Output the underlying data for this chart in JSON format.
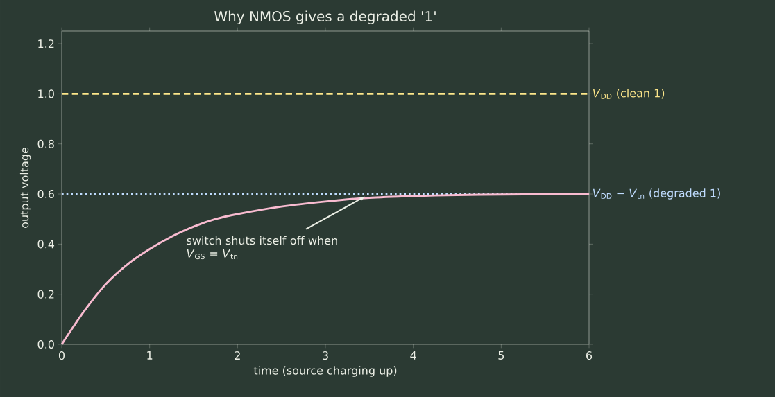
{
  "chart_data": {
    "type": "line",
    "title": "Why NMOS gives a degraded '1'",
    "xlabel": "time (source charging up)",
    "ylabel": "output voltage",
    "x": [
      0,
      0.25,
      0.5,
      0.75,
      1,
      1.25,
      1.5,
      1.75,
      2,
      2.5,
      3,
      3.5,
      4,
      4.5,
      5,
      5.5,
      6
    ],
    "series": [
      {
        "color": "#f8bbd0",
        "values": [
          0,
          0.13,
          0.24,
          0.32,
          0.38,
          0.43,
          0.47,
          0.5,
          0.52,
          0.55,
          0.57,
          0.585,
          0.592,
          0.596,
          0.598,
          0.599,
          0.6
        ]
      }
    ],
    "xlim": [
      0,
      6
    ],
    "ylim": [
      0,
      1.25
    ],
    "xticks": [
      0,
      1,
      2,
      3,
      4,
      5,
      6
    ],
    "yticks": [
      {
        "value": 0,
        "label": "0.0"
      },
      {
        "value": 0.2,
        "label": "0.2"
      },
      {
        "value": 0.4,
        "label": "0.4"
      },
      {
        "value": 0.6,
        "label": "0.6"
      },
      {
        "value": 0.8,
        "label": "0.8"
      },
      {
        "value": 1.0,
        "label": "1.0"
      },
      {
        "value": 1.2,
        "label": "1.2"
      }
    ],
    "ref_lines": [
      {
        "axis": "y",
        "value": 1.0,
        "label": "*V*$_{DD}$  (clean 1)",
        "color": "#fde68a",
        "line_style": "dashed"
      },
      {
        "axis": "y",
        "value": 0.6,
        "label": "*V*$_{DD}$ − *V*$_{tn}$  (degraded 1)",
        "color": "#bfdbfe",
        "line_style": "dotted"
      }
    ],
    "annotations": [
      {
        "text": "switch shuts itself off when *V*$_{GS}$ = *V*$_{tn}$",
        "x": 3.45,
        "y": 0.59
      }
    ]
  }
}
